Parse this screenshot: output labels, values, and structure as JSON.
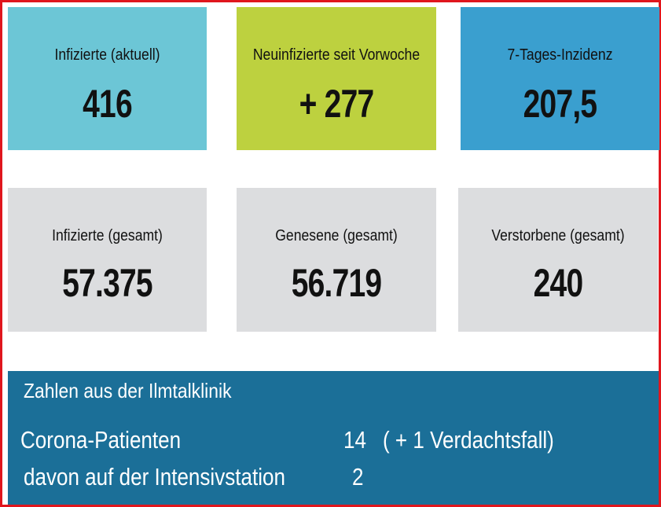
{
  "colors": {
    "frame_border": "#e0161d",
    "tile_current_infected": "#6cc6d6",
    "tile_new_since_last_week": "#bdd13f",
    "tile_incidence": "#3a9fcf",
    "tile_totals": "#dcdddf",
    "clinic_panel": "#1b6f98",
    "value_text": "#111111",
    "clinic_text": "#ffffff"
  },
  "stats_row1": [
    {
      "label": "Infizierte (aktuell)",
      "value": "416"
    },
    {
      "label": "Neuinfizierte seit Vorwoche",
      "value": "+ 277"
    },
    {
      "label": "7-Tages-Inzidenz",
      "value": "207,5"
    }
  ],
  "stats_row2": [
    {
      "label": "Infizierte (gesamt)",
      "value": "57.375"
    },
    {
      "label": "Genesene (gesamt)",
      "value": "56.719"
    },
    {
      "label": "Verstorbene (gesamt)",
      "value": "240"
    }
  ],
  "clinic": {
    "title": "Zahlen aus der Ilmtalklinik",
    "rows": [
      {
        "label": "Corona-Patienten",
        "count": "14",
        "note": "( + 1 Verdachtsfall)"
      },
      {
        "label": "davon auf der Intensivstation",
        "count": "2"
      }
    ]
  }
}
